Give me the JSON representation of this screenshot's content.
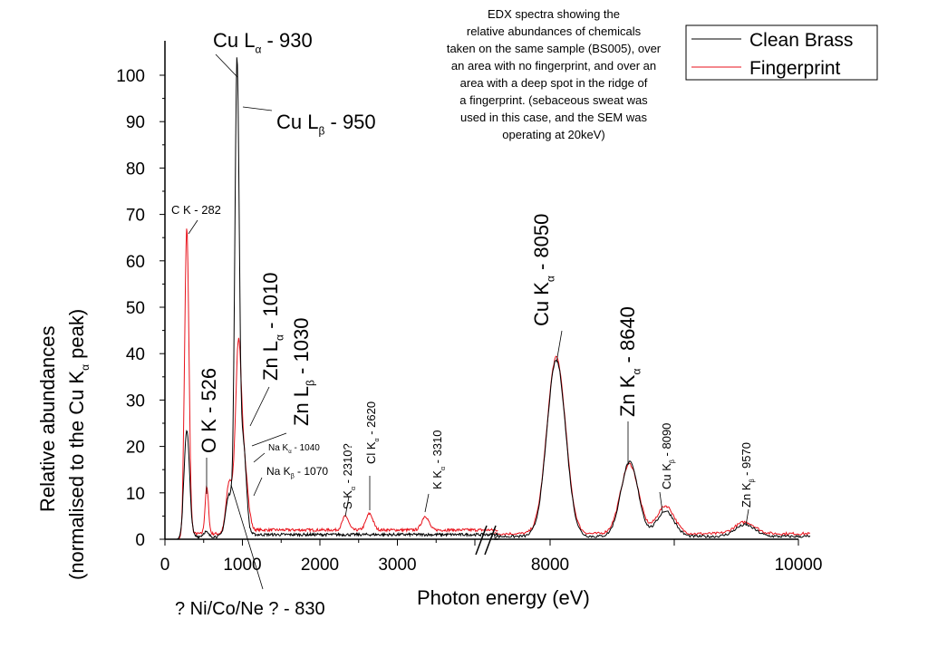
{
  "chart_data": {
    "type": "line",
    "title_lines": [
      "EDX spectra showing the",
      "relative abundances of chemicals",
      "taken on the same sample (BS005), over",
      "an area with no fingerprint, and over an",
      "area with a deep spot in the ridge of",
      "a fingerprint. (sebaceous sweat was",
      "used in this case, and the SEM was",
      "operating at 20keV)"
    ],
    "xlabel": "Photon energy (eV)",
    "ylabel_line1": "Relative abundances",
    "ylabel_line2_main": "(normalised to the Cu K",
    "ylabel_line2_sub": "α",
    "ylabel_line2_tail": " peak)",
    "x_break": true,
    "xlim_segments": [
      [
        0,
        4300
      ],
      [
        7550,
        10100
      ]
    ],
    "ylim": [
      0,
      100
    ],
    "x_ticks_left": [
      "0",
      "1000",
      "2000",
      "3000"
    ],
    "x_ticks_right": [
      "8000",
      "10000"
    ],
    "y_ticks": [
      "0",
      "10",
      "20",
      "30",
      "40",
      "50",
      "60",
      "70",
      "80",
      "90",
      "100"
    ],
    "legend_position": "top-right",
    "series": [
      {
        "name": "Clean Brass",
        "color": "#000000",
        "baseline": 1.0,
        "peaks": [
          [
            282,
            23,
            35
          ],
          [
            526,
            1,
            30
          ],
          [
            830,
            9,
            45
          ],
          [
            930,
            100,
            28
          ],
          [
            1010,
            20,
            40
          ],
          [
            8050,
            38,
            75
          ],
          [
            8640,
            16,
            70
          ],
          [
            8930,
            5.5,
            70
          ],
          [
            9570,
            2.5,
            80
          ]
        ]
      },
      {
        "name": "Fingerprint",
        "color": "#e8121b",
        "baseline": 2.0,
        "peaks": [
          [
            282,
            66,
            28
          ],
          [
            540,
            10,
            22
          ],
          [
            830,
            11,
            40
          ],
          [
            950,
            41,
            40
          ],
          [
            1040,
            12,
            40
          ],
          [
            2330,
            3,
            40
          ],
          [
            2640,
            3.5,
            45
          ],
          [
            3360,
            3,
            45
          ],
          [
            8050,
            38,
            75
          ],
          [
            8640,
            15,
            72
          ],
          [
            8930,
            6,
            70
          ],
          [
            9570,
            2.5,
            80
          ]
        ]
      }
    ],
    "annotations": [
      {
        "main": "Cu L",
        "sub": "α",
        "tail": " - 930"
      },
      {
        "main": "Cu L",
        "sub": "β",
        "tail": " - 950"
      },
      {
        "main": "C K - 282",
        "sub": "",
        "tail": ""
      },
      {
        "main": "O K - 526",
        "sub": "",
        "tail": ""
      },
      {
        "main": "Zn L",
        "sub": "α",
        "tail": " - 1010"
      },
      {
        "main": "Zn L",
        "sub": "β",
        "tail": " - 1030"
      },
      {
        "main": "Na K",
        "sub": "α",
        "tail": " - 1040"
      },
      {
        "main": "Na K",
        "sub": "β",
        "tail": " - 1070"
      },
      {
        "main": "? Ni/Co/Ne ? - 830",
        "sub": "",
        "tail": ""
      },
      {
        "main": "S K",
        "sub": "α",
        "tail": " - 2310?"
      },
      {
        "main": "Cl K",
        "sub": "α",
        "tail": " - 2620"
      },
      {
        "main": "K K",
        "sub": "α",
        "tail": " - 3310"
      },
      {
        "main": "Cu K",
        "sub": "α",
        "tail": " - 8050"
      },
      {
        "main": "Zn K",
        "sub": "α",
        "tail": " - 8640"
      },
      {
        "main": "Cu K",
        "sub": "β",
        "tail": " - 8090"
      },
      {
        "main": "Zn K",
        "sub": "β",
        "tail": " - 9570"
      }
    ]
  }
}
